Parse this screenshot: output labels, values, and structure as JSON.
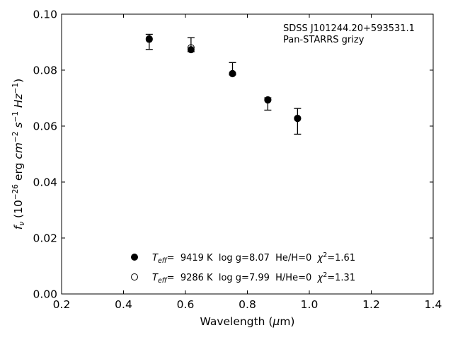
{
  "chart_data": {
    "type": "scatter",
    "xlabel": "Wavelength (μm)",
    "ylabel": "fν (10⁻²⁶ erg cm⁻² s⁻¹ Hz⁻¹)",
    "xlim": [
      0.2,
      1.4
    ],
    "ylim": [
      0.0,
      0.1
    ],
    "x_ticks": [
      0.2,
      0.4,
      0.6,
      0.8,
      1.0,
      1.2,
      1.4
    ],
    "x_tick_labels": [
      "0.2",
      "0.4",
      "0.6",
      "0.8",
      "1.0",
      "1.2",
      "1.4"
    ],
    "y_ticks": [
      0.0,
      0.02,
      0.04,
      0.06,
      0.08,
      0.1
    ],
    "y_tick_labels": [
      "0.00",
      "0.02",
      "0.04",
      "0.06",
      "0.08",
      "0.10"
    ],
    "grid": false,
    "annotation": {
      "line1": "SDSS J101244.20+593531.1",
      "line2": "Pan-STARRS grizy"
    },
    "observed": {
      "x": [
        0.483,
        0.618,
        0.752,
        0.866,
        0.962
      ],
      "y": [
        0.091,
        0.0879,
        0.0786,
        0.0693,
        0.0627
      ],
      "err_low": [
        0.0036,
        0.0013,
        0.0003,
        0.0036,
        0.0056
      ],
      "err_high": [
        0.0018,
        0.0037,
        0.0041,
        0.0008,
        0.0036
      ]
    },
    "legend_position": "lower-center",
    "series": [
      {
        "name": "Teff= 9419 K log g=8.07 He/H=0 χ²=1.61",
        "marker": "filled-circle",
        "x": [
          0.483,
          0.618,
          0.752,
          0.866,
          0.962
        ],
        "y": [
          0.0912,
          0.0873,
          0.0788,
          0.0694,
          0.0628
        ]
      },
      {
        "name": "Teff= 9286 K log g=7.99 H/He=0 χ²=1.31",
        "marker": "open-circle",
        "x": [
          0.483,
          0.618,
          0.752,
          0.866,
          0.962
        ],
        "y": [
          0.091,
          0.088,
          0.0787,
          0.0693,
          0.0627
        ]
      }
    ],
    "legend": [
      {
        "teff_value": "9419 K",
        "logg": "log g=8.07",
        "comp": "He/H=0",
        "chi2_value": "=1.61"
      },
      {
        "teff_value": "9286 K",
        "logg": "log g=7.99",
        "comp": "H/He=0",
        "chi2_value": "=1.31"
      }
    ]
  }
}
